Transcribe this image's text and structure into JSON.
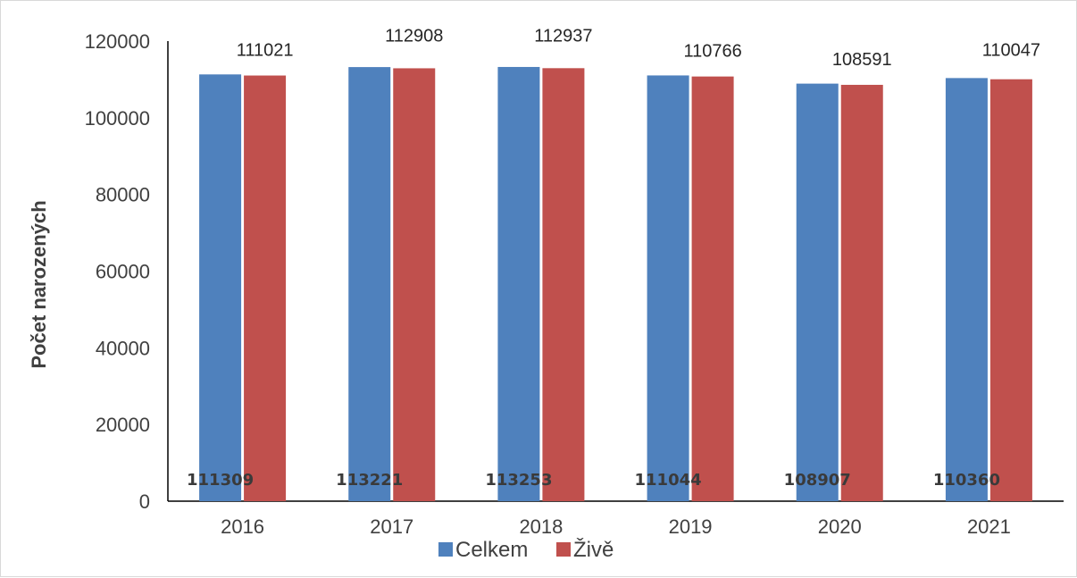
{
  "chart_data": {
    "type": "bar",
    "categories": [
      "2016",
      "2017",
      "2018",
      "2019",
      "2020",
      "2021"
    ],
    "series": [
      {
        "name": "Celkem",
        "color": "#4f81bd",
        "values": [
          111309,
          113221,
          113253,
          111044,
          108907,
          110360
        ]
      },
      {
        "name": "Živě",
        "color": "#c0504d",
        "values": [
          111021,
          112908,
          112937,
          110766,
          108591,
          110047
        ]
      }
    ],
    "ylabel": "Počet narozených",
    "ylim": [
      0,
      120000
    ],
    "yticks": [
      0,
      20000,
      40000,
      60000,
      80000,
      100000,
      120000
    ],
    "grid": false,
    "legend": "bottom"
  }
}
